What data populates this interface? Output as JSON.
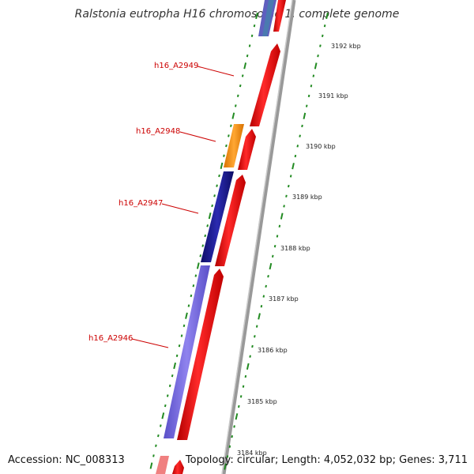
{
  "title": "Ralstonia eutropha H16 chromosome 1, complete genome",
  "footer": {
    "accession": "Accession: NC_008313",
    "summary": "Topology: circular; Length: 4,052,032 bp; Genes: 3,711"
  },
  "colors": {
    "forward_tick": "#228b22",
    "label": "#cc0000",
    "backbone": "#888888",
    "red_feature": "#ff0000",
    "orange_feature": "#ff8c00",
    "navy_feature": "#1a1a8c",
    "lavender_feature": "#7b68ee",
    "pink_feature": "#f08080"
  },
  "kbp_labels": [
    "3192 kbp",
    "3191 kbp",
    "3190 kbp",
    "3189 kbp",
    "3188 kbp",
    "3187 kbp",
    "3186 kbp",
    "3185 kbp",
    "3184 kbp"
  ],
  "gene_labels": [
    "h16_A2949",
    "h16_A2948",
    "h16_A2947",
    "h16_A2946"
  ]
}
